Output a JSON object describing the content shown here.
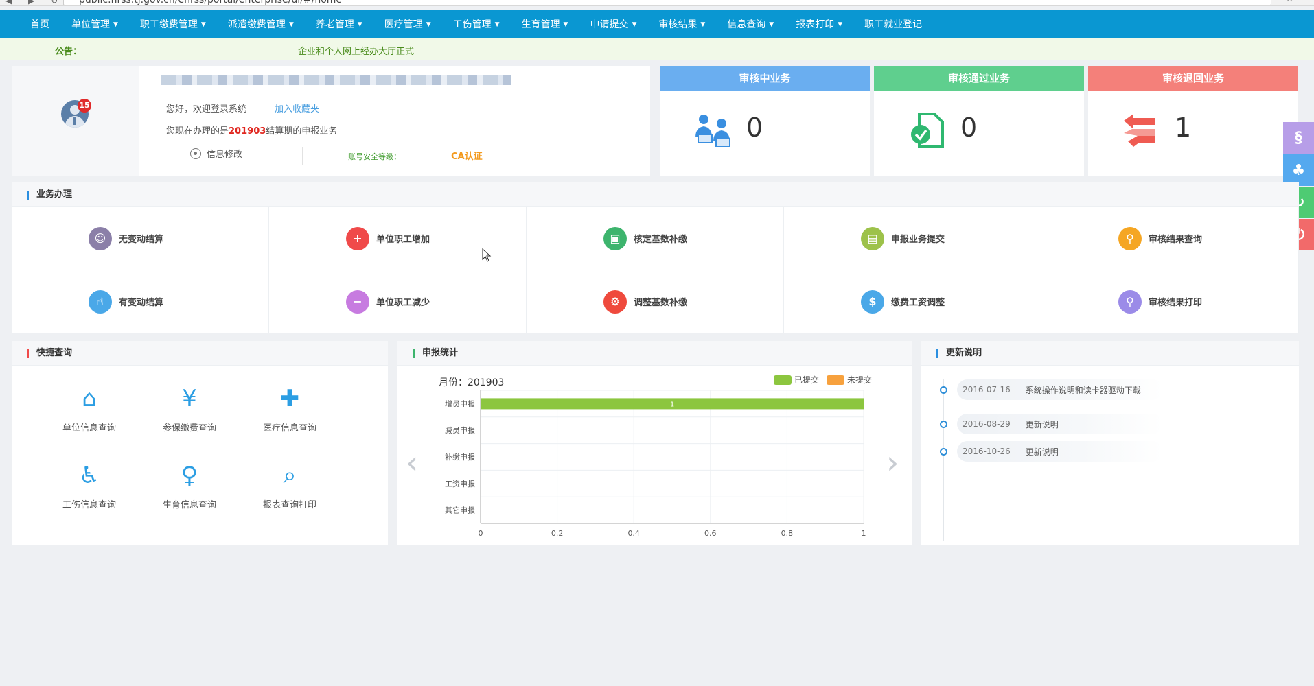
{
  "browser": {
    "url": "public.hrss.tj.gov.cn/ehrss/portal/enterprise/ui/#/home"
  },
  "nav": {
    "items": [
      {
        "label": "首页",
        "dropdown": false
      },
      {
        "label": "单位管理",
        "dropdown": true
      },
      {
        "label": "职工缴费管理",
        "dropdown": true
      },
      {
        "label": "派遣缴费管理",
        "dropdown": true
      },
      {
        "label": "养老管理",
        "dropdown": true
      },
      {
        "label": "医疗管理",
        "dropdown": true
      },
      {
        "label": "工伤管理",
        "dropdown": true
      },
      {
        "label": "生育管理",
        "dropdown": true
      },
      {
        "label": "申请提交",
        "dropdown": true
      },
      {
        "label": "审核结果",
        "dropdown": true
      },
      {
        "label": "信息查询",
        "dropdown": true
      },
      {
        "label": "报表打印",
        "dropdown": true
      },
      {
        "label": "职工就业登记",
        "dropdown": false
      }
    ]
  },
  "notice": {
    "label": "公告：",
    "text": "企业和个人网上经办大厅正式"
  },
  "user": {
    "badge_count": "15",
    "greeting": "您好，欢迎登录系统",
    "favorite_link": "加入收藏夹",
    "period_prefix": "您现在办理的是",
    "period": "201903",
    "period_suffix": "结算期的申报业务",
    "edit_info": "信息修改",
    "security_label": "账号安全等级：",
    "ca_label": "CA认证"
  },
  "stats": [
    {
      "title": "审核中业务",
      "count": "0",
      "color": "#6aaef0",
      "icon": "users-icon"
    },
    {
      "title": "审核通过业务",
      "count": "0",
      "color": "#5fcf8e",
      "icon": "doc-check-icon"
    },
    {
      "title": "审核退回业务",
      "count": "1",
      "color": "#f4807a",
      "icon": "return-arrows-icon"
    }
  ],
  "business": {
    "title": "业务办理",
    "items": [
      {
        "label": "无变动结算",
        "color": "#8b7fa8",
        "glyph": "☺"
      },
      {
        "label": "单位职工增加",
        "color": "#f04a4a",
        "glyph": "+"
      },
      {
        "label": "核定基数补缴",
        "color": "#3db46d",
        "glyph": "▣"
      },
      {
        "label": "申报业务提交",
        "color": "#9dc24a",
        "glyph": "▤"
      },
      {
        "label": "审核结果查询",
        "color": "#f5a623",
        "glyph": "⚲"
      },
      {
        "label": "有变动结算",
        "color": "#4aa8e8",
        "glyph": "☝"
      },
      {
        "label": "单位职工减少",
        "color": "#c77be0",
        "glyph": "−"
      },
      {
        "label": "调整基数补缴",
        "color": "#ef4a3d",
        "glyph": "⚙"
      },
      {
        "label": "缴费工资调整",
        "color": "#4aa8e8",
        "glyph": "$"
      },
      {
        "label": "审核结果打印",
        "color": "#9b8be8",
        "glyph": "⚲"
      }
    ]
  },
  "quick": {
    "title": "快捷查询",
    "items": [
      {
        "label": "单位信息查询",
        "glyph": "⌂"
      },
      {
        "label": "参保缴费查询",
        "glyph": "¥"
      },
      {
        "label": "医疗信息查询",
        "glyph": "✚"
      },
      {
        "label": "工伤信息查询",
        "glyph": "♿"
      },
      {
        "label": "生育信息查询",
        "glyph": "♀"
      },
      {
        "label": "报表查询打印",
        "glyph": "⌕"
      }
    ]
  },
  "stats_chart": {
    "title": "申报统计",
    "month_label": "月份：",
    "month": "201903",
    "legend": [
      {
        "name": "已提交",
        "color": "#8cc63f"
      },
      {
        "name": "未提交",
        "color": "#f7a13d"
      }
    ]
  },
  "chart_data": {
    "type": "bar",
    "orientation": "horizontal",
    "categories": [
      "增员申报",
      "减员申报",
      "补缴申报",
      "工资申报",
      "其它申报"
    ],
    "series": [
      {
        "name": "已提交",
        "values": [
          1,
          0,
          0,
          0,
          0
        ]
      },
      {
        "name": "未提交",
        "values": [
          0,
          0,
          0,
          0,
          0
        ]
      }
    ],
    "xlim": [
      0,
      1
    ],
    "xticks": [
      "0",
      "0.2",
      "0.4",
      "0.6",
      "0.8",
      "1"
    ],
    "grid": true,
    "legend_position": "top-right"
  },
  "updates": {
    "title": "更新说明",
    "items": [
      {
        "date": "2016-07-16",
        "text": "系统操作说明和读卡器驱动下载"
      },
      {
        "date": "2016-08-29",
        "text": "更新说明"
      },
      {
        "date": "2016-10-26",
        "text": "更新说明"
      }
    ]
  },
  "float_buttons": [
    {
      "name": "si-logo-button",
      "color": "#b79ee8",
      "glyph": "§"
    },
    {
      "name": "tree-button",
      "color": "#55a9ef",
      "glyph": "♣"
    },
    {
      "name": "refresh-button",
      "color": "#4ecb73",
      "glyph": "↻"
    },
    {
      "name": "power-button",
      "color": "#f26a6a",
      "glyph": "⏻"
    }
  ]
}
